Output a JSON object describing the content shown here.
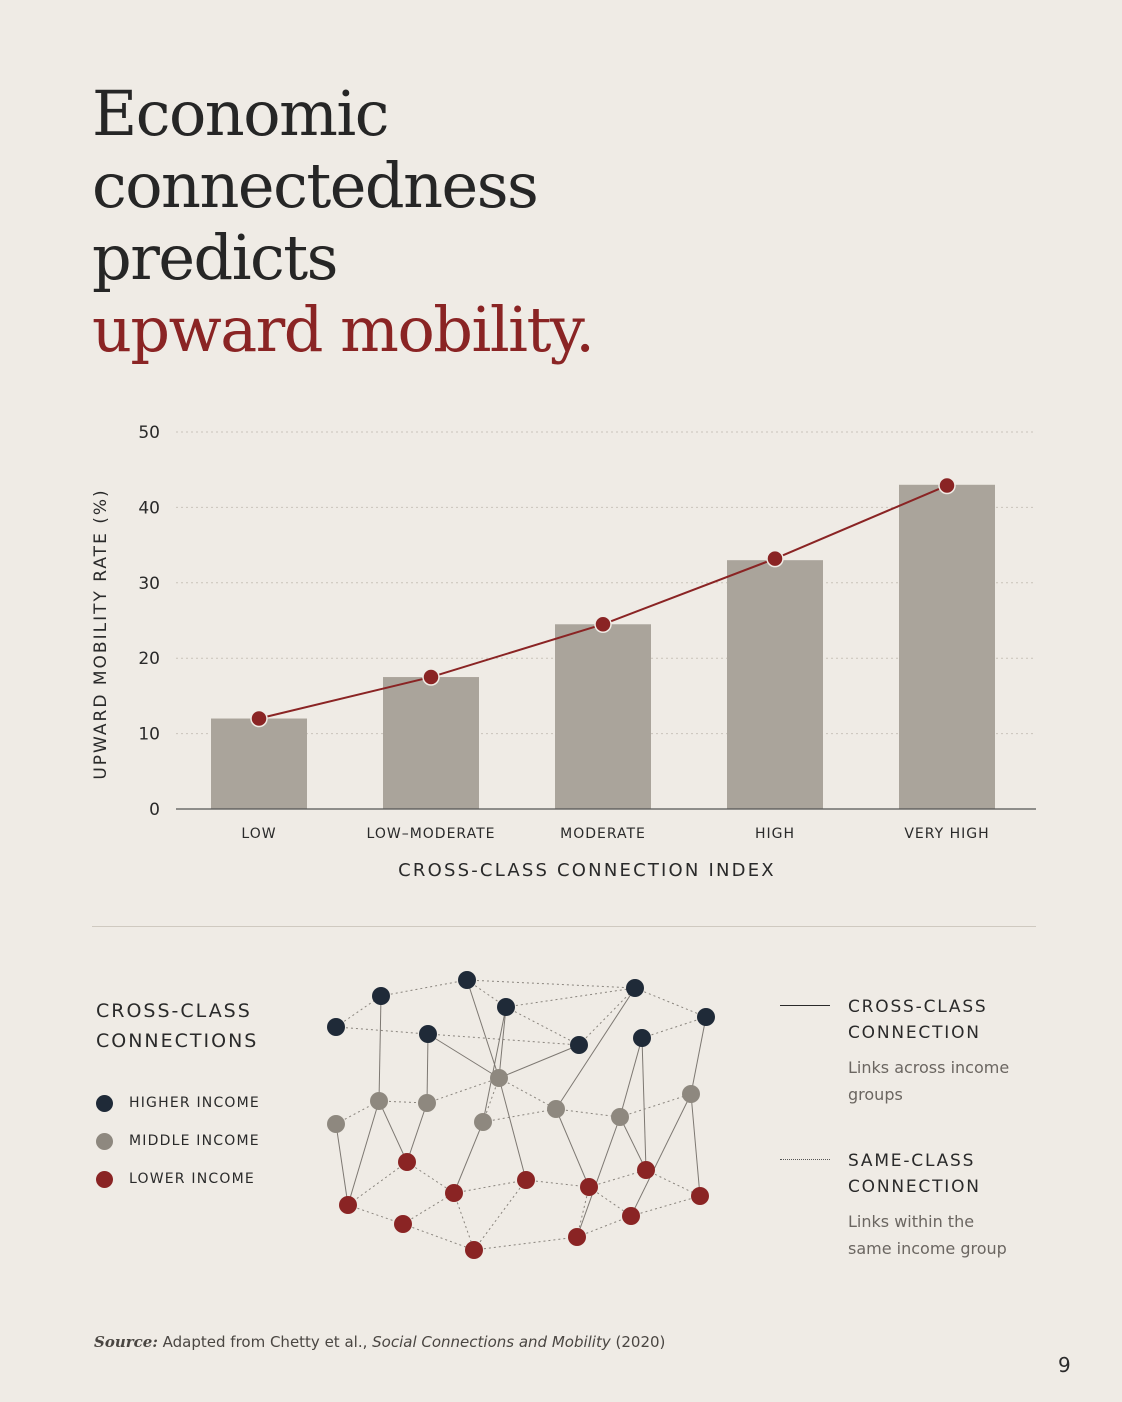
{
  "title": {
    "line1": "Economic",
    "line2": "connectedness",
    "line3": "predicts",
    "accent": "upward mobility."
  },
  "colors": {
    "accent": "#8a2424",
    "bar": "#aaa49b",
    "higher": "#1f2a38",
    "middle": "#8e887f",
    "lower": "#8a2424"
  },
  "chart_data": {
    "type": "bar",
    "categories": [
      "LOW",
      "LOW–MODERATE",
      "MODERATE",
      "HIGH",
      "VERY HIGH"
    ],
    "series": [
      {
        "type": "bar",
        "values": [
          12,
          17.5,
          24.5,
          33,
          43
        ]
      },
      {
        "type": "line",
        "values": [
          12,
          17.5,
          24.5,
          33.2,
          42.9
        ]
      }
    ],
    "xlabel": "CROSS-CLASS CONNECTION INDEX",
    "ylabel": "UPWARD MOBILITY RATE (%)",
    "ylim": [
      0,
      50
    ],
    "yticks": [
      0,
      10,
      20,
      30,
      40,
      50
    ],
    "grid": true
  },
  "legend": {
    "title_line1": "CROSS-CLASS",
    "title_line2": "CONNECTIONS",
    "items": [
      {
        "label": "HIGHER INCOME",
        "color": "#1f2a38"
      },
      {
        "label": "MIDDLE INCOME",
        "color": "#8e887f"
      },
      {
        "label": "LOWER INCOME",
        "color": "#8a2424"
      }
    ]
  },
  "connection_legend": {
    "cross": {
      "title_line1": "CROSS-CLASS",
      "title_line2": "CONNECTION",
      "desc_line1": "Links across income",
      "desc_line2": "groups"
    },
    "same": {
      "title_line1": "SAME-CLASS",
      "title_line2": "CONNECTION",
      "desc_line1": "Links within the",
      "desc_line2": "same income group"
    }
  },
  "source": {
    "label": "Source:",
    "text": "Adapted from Chetty et al.,",
    "work": "Social Connections and Mobility",
    "year": "(2020)"
  },
  "page_number": "9"
}
